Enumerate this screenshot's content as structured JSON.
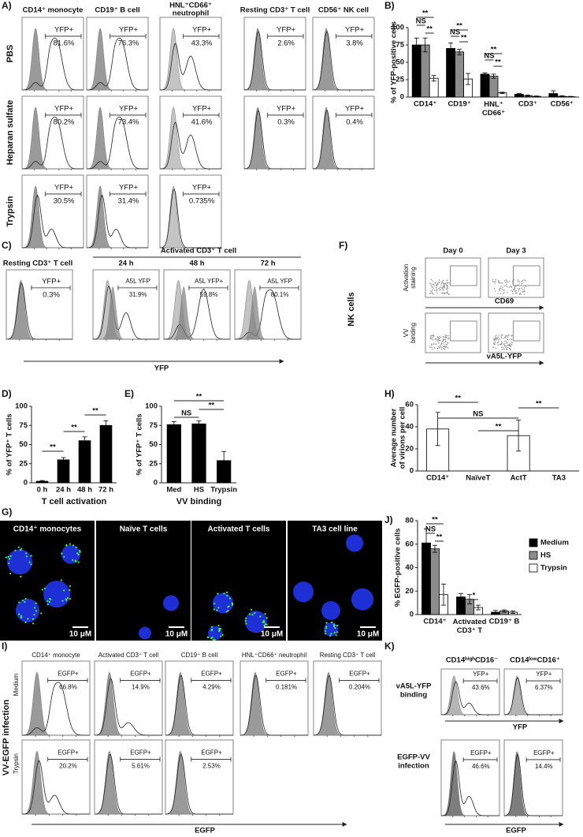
{
  "panel_labels": [
    "A)",
    "B)",
    "C)",
    "D)",
    "E)",
    "F)",
    "G)",
    "H)",
    "I)",
    "J)",
    "K)"
  ],
  "panel_a": {
    "columns": [
      "CD14⁺ monocyte",
      "CD19⁺ B cell",
      [
        "HNL⁺CD66⁺",
        "neutrophil"
      ],
      "Resting CD3⁺ T cell",
      "CD56⁺ NK cell"
    ],
    "rows": [
      "PBS",
      "Heparan sulfate",
      "Trypsin"
    ],
    "gates": [
      [
        [
          "YFP+",
          "81.6%"
        ],
        [
          "YFP+",
          "76.3%"
        ],
        [
          "YFP+",
          "43.3%"
        ],
        [
          "YFP+",
          "2.6%"
        ],
        [
          "YFP+",
          "3.8%"
        ]
      ],
      [
        [
          "YFP+",
          "80.2%"
        ],
        [
          "YFP+",
          "73.4%"
        ],
        [
          "YFP+",
          "41.6%"
        ],
        [
          "YFP+",
          "0.3%"
        ],
        [
          "YFP+",
          "0.4%"
        ]
      ],
      [
        [
          "YFP+",
          "30.5%"
        ],
        [
          "YFP+",
          "31.4%"
        ],
        [
          "YFP+",
          "0.735%"
        ]
      ]
    ]
  },
  "panel_c": {
    "resting_title": "Resting CD3⁺ T cell",
    "activated_title": "Activated CD3⁺ T cell",
    "times": [
      "24 h",
      "48 h",
      "72 h"
    ],
    "gates": [
      [
        "YFP+",
        "0.3%"
      ],
      [
        "A5L YFP",
        "31.9%"
      ],
      [
        "A5L YFP+",
        "59.8%"
      ],
      [
        "A5L YFP",
        "80.1%"
      ]
    ],
    "xlabel": "YFP"
  },
  "panel_f": {
    "days": [
      "Day 0",
      "Day 3"
    ],
    "cell_label": "NK cells",
    "rows": [
      [
        "Activation",
        "staining"
      ],
      [
        "VV",
        "binding"
      ]
    ],
    "xlabels": [
      "CD69",
      "vA5L-YFP"
    ]
  },
  "panel_g": {
    "titles": [
      "CD14⁺ monocytes",
      "Naïve T cells",
      "Activated T cells",
      "TA3 cell line"
    ],
    "scale_bar": "10 μM"
  },
  "panel_i": {
    "columns": [
      "CD14⁺ monocyte",
      "Activated CD3⁺ T cell",
      "CD19⁺ B cell",
      "HNL⁺CD66⁺ neutrophil",
      "Resting CD3⁺ T cell"
    ],
    "rows": [
      "Medium",
      "Trypsin"
    ],
    "side_label": "VV-EGFP infection",
    "gates": [
      [
        [
          "EGFP+",
          "66.8%"
        ],
        [
          "EGFP+",
          "14.9%"
        ],
        [
          "EGFP+",
          "4.29%"
        ],
        [
          "EGFP+",
          "0.181%"
        ],
        [
          "EGFP+",
          "0.204%"
        ]
      ],
      [
        [
          "EGFP+",
          "20.2%"
        ],
        [
          "EGFP+",
          "5.61%"
        ],
        [
          "EGFP+",
          "2.53%"
        ]
      ]
    ],
    "xlabel": "EGFP"
  },
  "panel_k": {
    "columns": [
      "CD14ʰⁱᵍʰCD16⁻",
      "CD14ˡᵒʷCD16⁺"
    ],
    "rows": [
      [
        "vA5L-YFP",
        "binding"
      ],
      [
        "EGFP-VV",
        "infection"
      ]
    ],
    "gates": [
      [
        [
          "YFP+",
          "43.6%"
        ],
        [
          "YFP+",
          "6.37%"
        ]
      ],
      [
        [
          "EGFP+",
          "46.6%"
        ],
        [
          "EGFP+",
          "14.4%"
        ]
      ]
    ],
    "xlabels": [
      "YFP",
      "EGFP"
    ]
  },
  "chart_data": [
    {
      "type": "bar",
      "ylabel": "% of YFP-positive cells",
      "categories": [
        "CD14⁺",
        "CD19⁺",
        "HNL⁺ CD66⁺",
        "CD3⁺",
        "CD56⁺"
      ],
      "series": [
        {
          "color": "#000000",
          "values": [
            75,
            70,
            33,
            4,
            5
          ],
          "errors": [
            10,
            8,
            2,
            1,
            4
          ]
        },
        {
          "color": "#8c8c8c",
          "values": [
            75,
            65,
            30,
            2,
            1
          ],
          "errors": [
            10,
            4,
            3,
            1,
            1
          ]
        },
        {
          "color": "#ffffff",
          "values": [
            27,
            26,
            6,
            1,
            0.5
          ],
          "errors": [
            4,
            8,
            1,
            0.5,
            0.5
          ]
        }
      ],
      "ylim": [
        0,
        100
      ],
      "yticks": [
        0,
        25,
        50,
        75,
        100
      ],
      "annotations": [
        "**",
        "NS",
        "**",
        "**",
        "NS",
        "**",
        "**",
        "NS",
        "**"
      ]
    },
    {
      "type": "bar",
      "ylabel": "% of YFP⁺ T cells",
      "xlabel": "T cell activation",
      "categories": [
        "0 h",
        "24 h",
        "48 h",
        "72 h"
      ],
      "color": "#000000",
      "values": [
        2,
        30,
        55,
        75
      ],
      "errors": [
        1,
        3,
        5,
        6
      ],
      "ylim": [
        0,
        100
      ],
      "yticks": [
        0,
        25,
        50,
        75,
        100
      ],
      "annotations": [
        "**",
        "**",
        "**"
      ]
    },
    {
      "type": "bar",
      "ylabel": "% of YFP⁺ T cells",
      "xlabel": "VV binding",
      "categories": [
        "Med",
        "HS",
        "Trypsin"
      ],
      "color": "#000000",
      "values": [
        76,
        77,
        29
      ],
      "errors": [
        4,
        4,
        12
      ],
      "ylim": [
        0,
        100
      ],
      "yticks": [
        0,
        25,
        50,
        75,
        100
      ],
      "annotations": [
        "**",
        "NS",
        "**"
      ]
    },
    {
      "type": "bar",
      "ylabel": [
        "Average number",
        "of virions per cell"
      ],
      "categories": [
        "CD14⁺",
        "NaïveT",
        "ActT",
        "TA3"
      ],
      "color": "#ffffff",
      "values": [
        38,
        0,
        32,
        0
      ],
      "errors": [
        15,
        0,
        14,
        0
      ],
      "ylim": [
        0,
        60
      ],
      "yticks": [
        0,
        20,
        40,
        60
      ],
      "annotations": [
        "**",
        "NS",
        "**",
        "**"
      ]
    },
    {
      "type": "bar",
      "ylabel": "% EGFP-positive cells",
      "categories": [
        "CD14⁺",
        "Activated CD3⁺ T",
        "CD19⁺ B"
      ],
      "series": [
        {
          "name": "Medium",
          "color": "#000000",
          "values": [
            61,
            15,
            2
          ],
          "errors": [
            12,
            3,
            1.5
          ]
        },
        {
          "name": "HS",
          "color": "#8c8c8c",
          "values": [
            56,
            13,
            3
          ],
          "errors": [
            3,
            4,
            1
          ]
        },
        {
          "name": "Trypsin",
          "color": "#ffffff",
          "values": [
            17,
            6,
            2
          ],
          "errors": [
            9,
            2,
            1
          ]
        }
      ],
      "ylim": [
        0,
        80
      ],
      "yticks": [
        0,
        20,
        40,
        60,
        80
      ],
      "annotations": [
        "**",
        "NS",
        "**",
        "*"
      ]
    }
  ]
}
